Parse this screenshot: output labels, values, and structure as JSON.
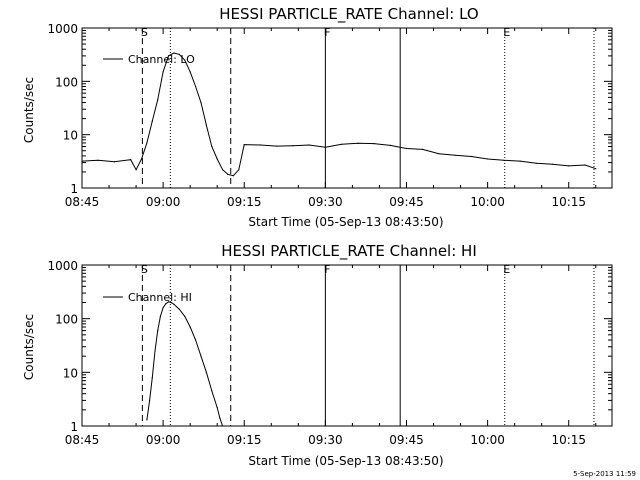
{
  "chart_data": [
    {
      "type": "line",
      "title": "HESSI PARTICLE_RATE Channel: LO",
      "xlabel": "Start Time (05-Sep-13 08:43:50)",
      "ylabel": "Counts/sec",
      "x_unit": "time of day (HH:MM), 05-Sep-2013",
      "x_range": [
        "08:45",
        "10:23"
      ],
      "y_scale": "log",
      "ylim": [
        1,
        1000
      ],
      "x_ticks": [
        "08:45",
        "09:00",
        "09:15",
        "09:30",
        "09:45",
        "10:00",
        "10:15"
      ],
      "y_ticks": [
        "1",
        "10",
        "100",
        "1000"
      ],
      "legend": "top-left",
      "series": [
        {
          "name": "Channel: LO",
          "x": [
            "08:45",
            "08:48",
            "08:51",
            "08:54",
            "08:55",
            "08:56",
            "08:57",
            "08:58",
            "08:59",
            "09:00",
            "09:01",
            "09:02",
            "09:03",
            "09:04",
            "09:05",
            "09:06",
            "09:07",
            "09:08",
            "09:09",
            "09:10",
            "09:11",
            "09:12",
            "09:13",
            "09:14",
            "09:15",
            "09:18",
            "09:21",
            "09:24",
            "09:27",
            "09:30",
            "09:33",
            "09:36",
            "09:39",
            "09:42",
            "09:45",
            "09:48",
            "09:51",
            "09:54",
            "09:57",
            "10:00",
            "10:03",
            "10:06",
            "10:09",
            "10:12",
            "10:15",
            "10:18",
            "10:20"
          ],
          "values": [
            3.2,
            3.3,
            3.1,
            3.4,
            2.2,
            3.5,
            7,
            18,
            45,
            150,
            300,
            340,
            320,
            250,
            150,
            80,
            40,
            15,
            6,
            3.5,
            2.2,
            1.8,
            1.7,
            2.2,
            6.5,
            6.4,
            6.1,
            6.2,
            6.4,
            5.8,
            6.6,
            6.9,
            6.8,
            6.3,
            5.5,
            5.3,
            4.4,
            4.1,
            3.9,
            3.5,
            3.3,
            3.2,
            2.9,
            2.8,
            2.6,
            2.7,
            2.3
          ]
        }
      ],
      "markers": [
        {
          "label": "S",
          "x": "08:56:10",
          "style": "dashed"
        },
        {
          "x": "09:01:20",
          "style": "dotted"
        },
        {
          "x": "09:12:30",
          "style": "dashed"
        },
        {
          "label": "F",
          "x": "09:30",
          "style": "solid"
        },
        {
          "x": "09:43:50",
          "style": "solid"
        },
        {
          "label": "E",
          "x": "10:03:10",
          "style": "dotted"
        },
        {
          "x": "10:19:40",
          "style": "dotted"
        }
      ]
    },
    {
      "type": "line",
      "title": "HESSI PARTICLE_RATE Channel: HI",
      "xlabel": "Start Time (05-Sep-13 08:43:50)",
      "ylabel": "Counts/sec",
      "x_unit": "time of day (HH:MM), 05-Sep-2013",
      "x_range": [
        "08:45",
        "10:23"
      ],
      "y_scale": "log",
      "ylim": [
        1,
        1000
      ],
      "x_ticks": [
        "08:45",
        "09:00",
        "09:15",
        "09:30",
        "09:45",
        "10:00",
        "10:15"
      ],
      "y_ticks": [
        "1",
        "10",
        "100",
        "1000"
      ],
      "legend": "top-left",
      "series": [
        {
          "name": "Channel: HI",
          "x": [
            "08:57:00",
            "08:57:30",
            "08:58:00",
            "08:58:30",
            "08:59:00",
            "08:59:30",
            "09:00:00",
            "09:00:30",
            "09:01:00",
            "09:01:30",
            "09:02:00",
            "09:03:00",
            "09:04:00",
            "09:05:00",
            "09:06:00",
            "09:07:00",
            "09:08:00",
            "09:09:00",
            "09:10:00",
            "09:10:30",
            "09:11:00"
          ],
          "values": [
            1.3,
            3,
            8,
            25,
            60,
            110,
            160,
            190,
            205,
            200,
            185,
            150,
            110,
            70,
            40,
            20,
            10,
            4.5,
            2.2,
            1.4,
            1.0
          ]
        }
      ],
      "markers": [
        {
          "label": "S",
          "x": "08:56:10",
          "style": "dashed"
        },
        {
          "x": "09:01:20",
          "style": "dotted"
        },
        {
          "x": "09:12:30",
          "style": "dashed"
        },
        {
          "label": "F",
          "x": "09:30",
          "style": "solid"
        },
        {
          "x": "09:43:50",
          "style": "solid"
        },
        {
          "label": "E",
          "x": "10:03:10",
          "style": "dotted"
        },
        {
          "x": "10:19:40",
          "style": "dotted"
        }
      ]
    }
  ],
  "footer": {
    "stamp": "5-Sep-2013 11:59"
  }
}
